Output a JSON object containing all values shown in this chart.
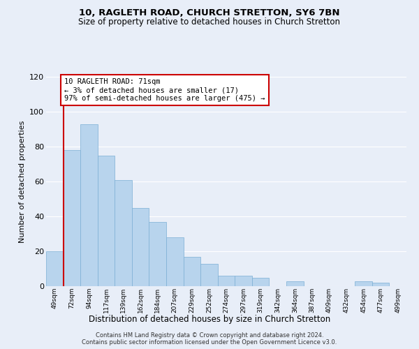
{
  "title": "10, RAGLETH ROAD, CHURCH STRETTON, SY6 7BN",
  "subtitle": "Size of property relative to detached houses in Church Stretton",
  "xlabel": "Distribution of detached houses by size in Church Stretton",
  "ylabel": "Number of detached properties",
  "bar_labels": [
    "49sqm",
    "72sqm",
    "94sqm",
    "117sqm",
    "139sqm",
    "162sqm",
    "184sqm",
    "207sqm",
    "229sqm",
    "252sqm",
    "274sqm",
    "297sqm",
    "319sqm",
    "342sqm",
    "364sqm",
    "387sqm",
    "409sqm",
    "432sqm",
    "454sqm",
    "477sqm",
    "499sqm"
  ],
  "bar_heights": [
    20,
    78,
    93,
    75,
    61,
    45,
    37,
    28,
    17,
    13,
    6,
    6,
    5,
    0,
    3,
    0,
    0,
    0,
    3,
    2,
    0
  ],
  "bar_color": "#b8d4ed",
  "bar_edge_color": "#7bafd4",
  "highlight_color": "#cc0000",
  "ylim": [
    0,
    120
  ],
  "yticks": [
    0,
    20,
    40,
    60,
    80,
    100,
    120
  ],
  "annotation_title": "10 RAGLETH ROAD: 71sqm",
  "annotation_line1": "← 3% of detached houses are smaller (17)",
  "annotation_line2": "97% of semi-detached houses are larger (475) →",
  "annotation_box_color": "#ffffff",
  "annotation_box_edge": "#cc0000",
  "footer_line1": "Contains HM Land Registry data © Crown copyright and database right 2024.",
  "footer_line2": "Contains public sector information licensed under the Open Government Licence v3.0.",
  "background_color": "#e8eef8",
  "grid_color": "#ffffff",
  "title_fontsize": 9.5,
  "subtitle_fontsize": 8.5
}
